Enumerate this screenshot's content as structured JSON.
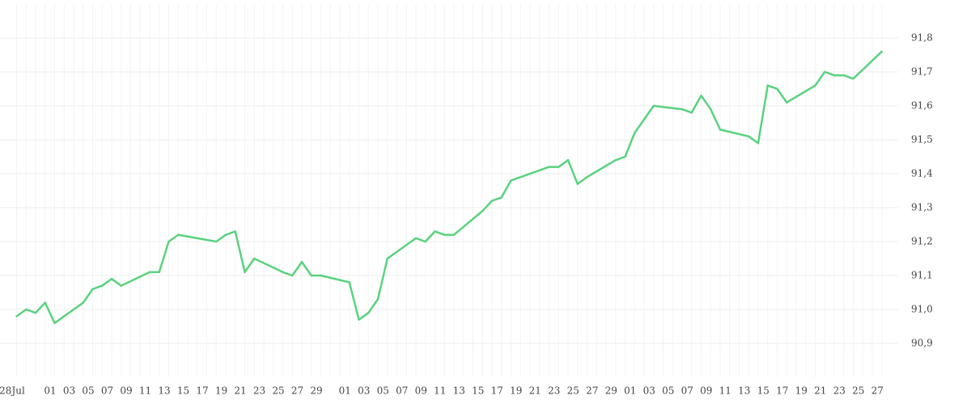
{
  "chart_data": {
    "type": "line",
    "categories": [
      "28Jul",
      null,
      null,
      null,
      "01",
      null,
      "03",
      null,
      "05",
      null,
      "07",
      null,
      "09",
      null,
      "11",
      null,
      "13",
      null,
      "15",
      null,
      "17",
      null,
      "19",
      null,
      "21",
      null,
      "23",
      null,
      "25",
      null,
      "27",
      null,
      "29",
      null,
      null,
      "01",
      null,
      "03",
      null,
      "05",
      null,
      "07",
      null,
      "09",
      null,
      "11",
      null,
      "13",
      null,
      "15",
      null,
      "17",
      null,
      "19",
      null,
      "21",
      null,
      "23",
      null,
      "25",
      null,
      "27",
      null,
      "29",
      null,
      "01",
      null,
      "03",
      null,
      "05",
      null,
      "07",
      null,
      "09",
      null,
      "11",
      null,
      "13",
      null,
      "15",
      null,
      "17",
      null,
      "19",
      null,
      "21",
      null,
      "23",
      null,
      "25",
      null,
      "27"
    ],
    "series": [
      {
        "color": "#5ad27f",
        "values": [
          90.98,
          91.0,
          90.99,
          91.02,
          90.96,
          null,
          null,
          91.02,
          91.06,
          91.07,
          91.09,
          91.07,
          null,
          null,
          91.11,
          91.11,
          91.2,
          91.22,
          null,
          null,
          null,
          91.2,
          91.22,
          91.23,
          91.11,
          91.15,
          null,
          null,
          91.11,
          91.1,
          91.14,
          91.1,
          91.1,
          null,
          null,
          91.08,
          90.97,
          90.99,
          91.03,
          91.15,
          null,
          null,
          91.21,
          91.2,
          91.23,
          91.22,
          91.22,
          null,
          null,
          91.29,
          91.32,
          91.33,
          91.38,
          null,
          null,
          null,
          91.42,
          91.42,
          91.44,
          91.37,
          91.39,
          null,
          null,
          91.44,
          91.45,
          91.52,
          null,
          91.6,
          null,
          null,
          91.59,
          91.58,
          91.63,
          91.59,
          91.53,
          null,
          null,
          91.51,
          91.49,
          91.66,
          91.65,
          91.61,
          null,
          null,
          91.66,
          91.7,
          91.69,
          91.69,
          91.68,
          null,
          null,
          91.76
        ]
      }
    ],
    "ylim": [
      90.8,
      91.9
    ],
    "yticks": [
      {
        "value": 90.9,
        "label": "90,9"
      },
      {
        "value": 91.0,
        "label": "91,0"
      },
      {
        "value": 91.1,
        "label": "91,1"
      },
      {
        "value": 91.2,
        "label": "91,2"
      },
      {
        "value": 91.3,
        "label": "91,3"
      },
      {
        "value": 91.4,
        "label": "91,4"
      },
      {
        "value": 91.5,
        "label": "91,5"
      },
      {
        "value": 91.6,
        "label": "91,6"
      },
      {
        "value": 91.7,
        "label": "91,7"
      },
      {
        "value": 91.8,
        "label": "91,8"
      }
    ],
    "grid": true
  }
}
